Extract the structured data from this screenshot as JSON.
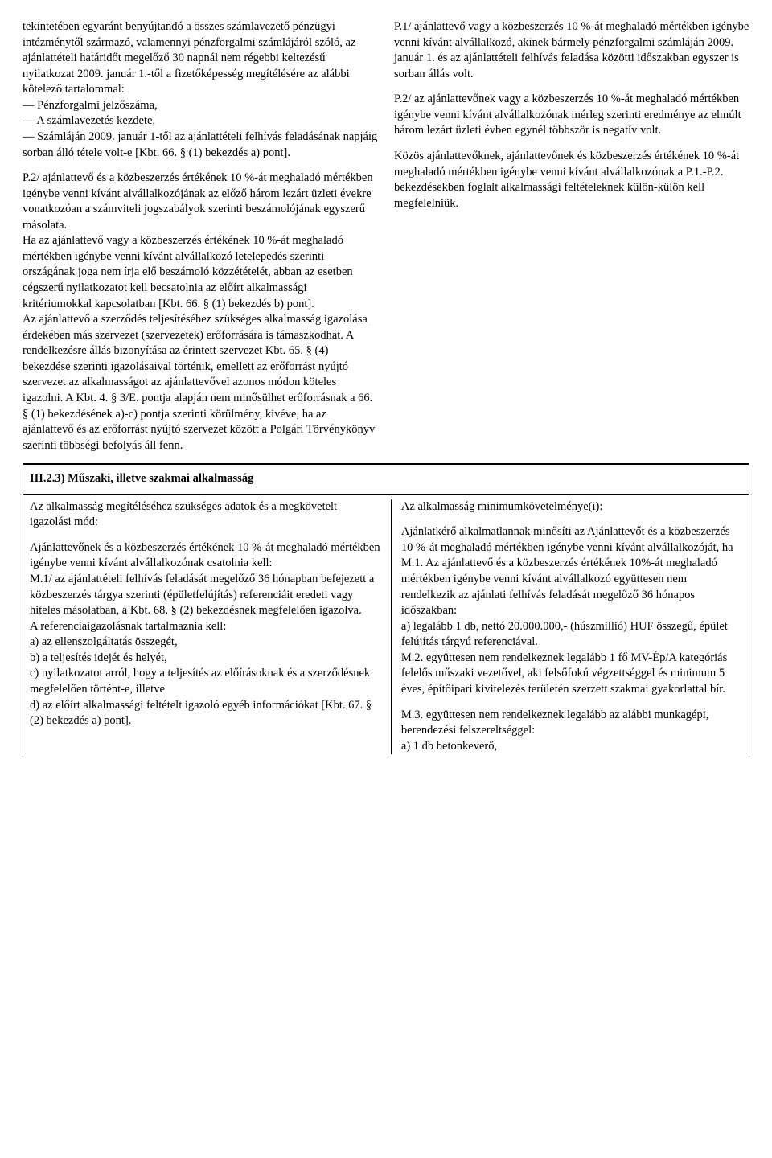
{
  "section1": {
    "left": {
      "p1": "tekintetében egyaránt benyújtandó a összes számlavezető pénzügyi intézménytől származó, valamennyi pénzforgalmi számlájáról szóló, az ajánlattételi határidőt megelőző 30 napnál nem régebbi keltezésű nyilatkozat 2009. január 1.-től a fizetőképesség megítélésére az alábbi kötelező tartalommal:",
      "li1": "— Pénzforgalmi jelzőszáma,",
      "li2": "— A számlavezetés kezdete,",
      "li3": "— Számláján 2009. január 1-től az ajánlattételi felhívás feladásának napjáig sorban álló tétele volt-e [Kbt. 66. § (1) bekezdés a) pont].",
      "p2": "P.2/ ajánlattevő és a közbeszerzés értékének 10 %-át meghaladó mértékben igénybe venni kívánt alvállalkozójának az előző három lezárt üzleti évekre vonatkozóan a számviteli jogszabályok szerinti beszámolójának egyszerű másolata.",
      "p3": "Ha az ajánlattevő vagy a közbeszerzés értékének 10 %-át meghaladó mértékben igénybe venni kívánt alvállalkozó letelepedés szerinti országának joga nem írja elő beszámoló közzétételét, abban az esetben cégszerű nyilatkozatot kell becsatolnia az előírt alkalmassági kritériumokkal kapcsolatban [Kbt. 66. § (1) bekezdés b) pont].",
      "p4": "Az ajánlattevő a szerződés teljesítéséhez szükséges alkalmasság igazolása érdekében más szervezet (szervezetek) erőforrására is támaszkodhat. A rendelkezésre állás bizonyítása az érintett szervezet Kbt. 65. § (4) bekezdése szerinti igazolásaival történik, emellett az erőforrást nyújtó szervezet az alkalmasságot az ajánlattevővel azonos módon köteles igazolni. A Kbt. 4. § 3/E. pontja alapján nem minősülhet erőforrásnak a 66. § (1) bekezdésének a)-c) pontja szerinti körülmény, kivéve, ha az ajánlattevő és az erőforrást nyújtó szervezet között a Polgári Törvénykönyv szerinti többségi befolyás áll fenn."
    },
    "right": {
      "p1": "P.1/ ajánlattevő vagy a közbeszerzés 10 %-át meghaladó mértékben igénybe venni kívánt alvállalkozó, akinek bármely pénzforgalmi számláján 2009. január 1. és az ajánlattételi felhívás feladása közötti időszakban egyszer is sorban állás volt.",
      "p2": "P.2/ az ajánlattevőnek vagy a közbeszerzés 10 %-át meghaladó mértékben igénybe venni kívánt alvállalkozónak mérleg szerinti eredménye az elmúlt három lezárt üzleti évben egynél többször is negatív volt.",
      "p3": "Közös ajánlattevőknek, ajánlattevőnek és közbeszerzés értékének 10 %-át meghaladó mértékben igénybe venni kívánt alvállalkozónak a P.1.-P.2. bekezdésekben foglalt alkalmassági feltételeknek külön-külön kell megfelelniük."
    }
  },
  "section2": {
    "heading": "III.2.3) Műszaki, illetve szakmai alkalmasság",
    "left": {
      "p1": "Az alkalmasság megítéléséhez szükséges adatok és a megkövetelt igazolási mód:",
      "p2": "Ajánlattevőnek és a közbeszerzés értékének 10 %-át meghaladó mértékben igénybe venni kívánt alvállalkozónak csatolnia kell:",
      "p3": "M.1/ az ajánlattételi felhívás feladását megelőző 36 hónapban befejezett a közbeszerzés tárgya szerinti (épületfelújítás) referenciáit eredeti vagy hiteles másolatban, a Kbt. 68. § (2) bekezdésnek megfelelően igazolva.",
      "p4": "A referenciaigazolásnak tartalmaznia kell:",
      "li1": "a) az ellenszolgáltatás összegét,",
      "li2": "b) a teljesítés idejét és helyét,",
      "li3": "c) nyilatkozatot arról, hogy a teljesítés az előírásoknak és a szerződésnek megfelelően történt-e, illetve",
      "li4": "d) az előírt alkalmassági feltételt igazoló egyéb információkat [Kbt. 67. § (2) bekezdés a) pont]."
    },
    "right": {
      "p1": "Az alkalmasság minimumkövetelménye(i):",
      "p2": "Ajánlatkérő alkalmatlannak minősíti az Ajánlattevőt és a közbeszerzés 10 %-át meghaladó mértékben igénybe venni kívánt alvállalkozóját, ha",
      "p3": "M.1. Az ajánlattevő és a közbeszerzés értékének 10%-át meghaladó mértékben igénybe venni kívánt alvállalkozó együttesen nem rendelkezik az ajánlati felhívás feladását megelőző 36 hónapos időszakban:",
      "p4": "a) legalább 1 db, nettó 20.000.000,- (húszmillió) HUF összegű, épület felújítás tárgyú referenciával.",
      "p5": "M.2. együttesen nem rendelkeznek legalább 1 fő MV-Ép/A kategóriás felelős műszaki vezetővel, aki felsőfokú végzettséggel és minimum 5 éves, építőipari kivitelezés területén szerzett szakmai gyakorlattal bír.",
      "p6": "M.3. együttesen nem rendelkeznek legalább az alábbi munkagépi, berendezési felszereltséggel:",
      "p7": "a) 1 db betonkeverő,"
    }
  }
}
